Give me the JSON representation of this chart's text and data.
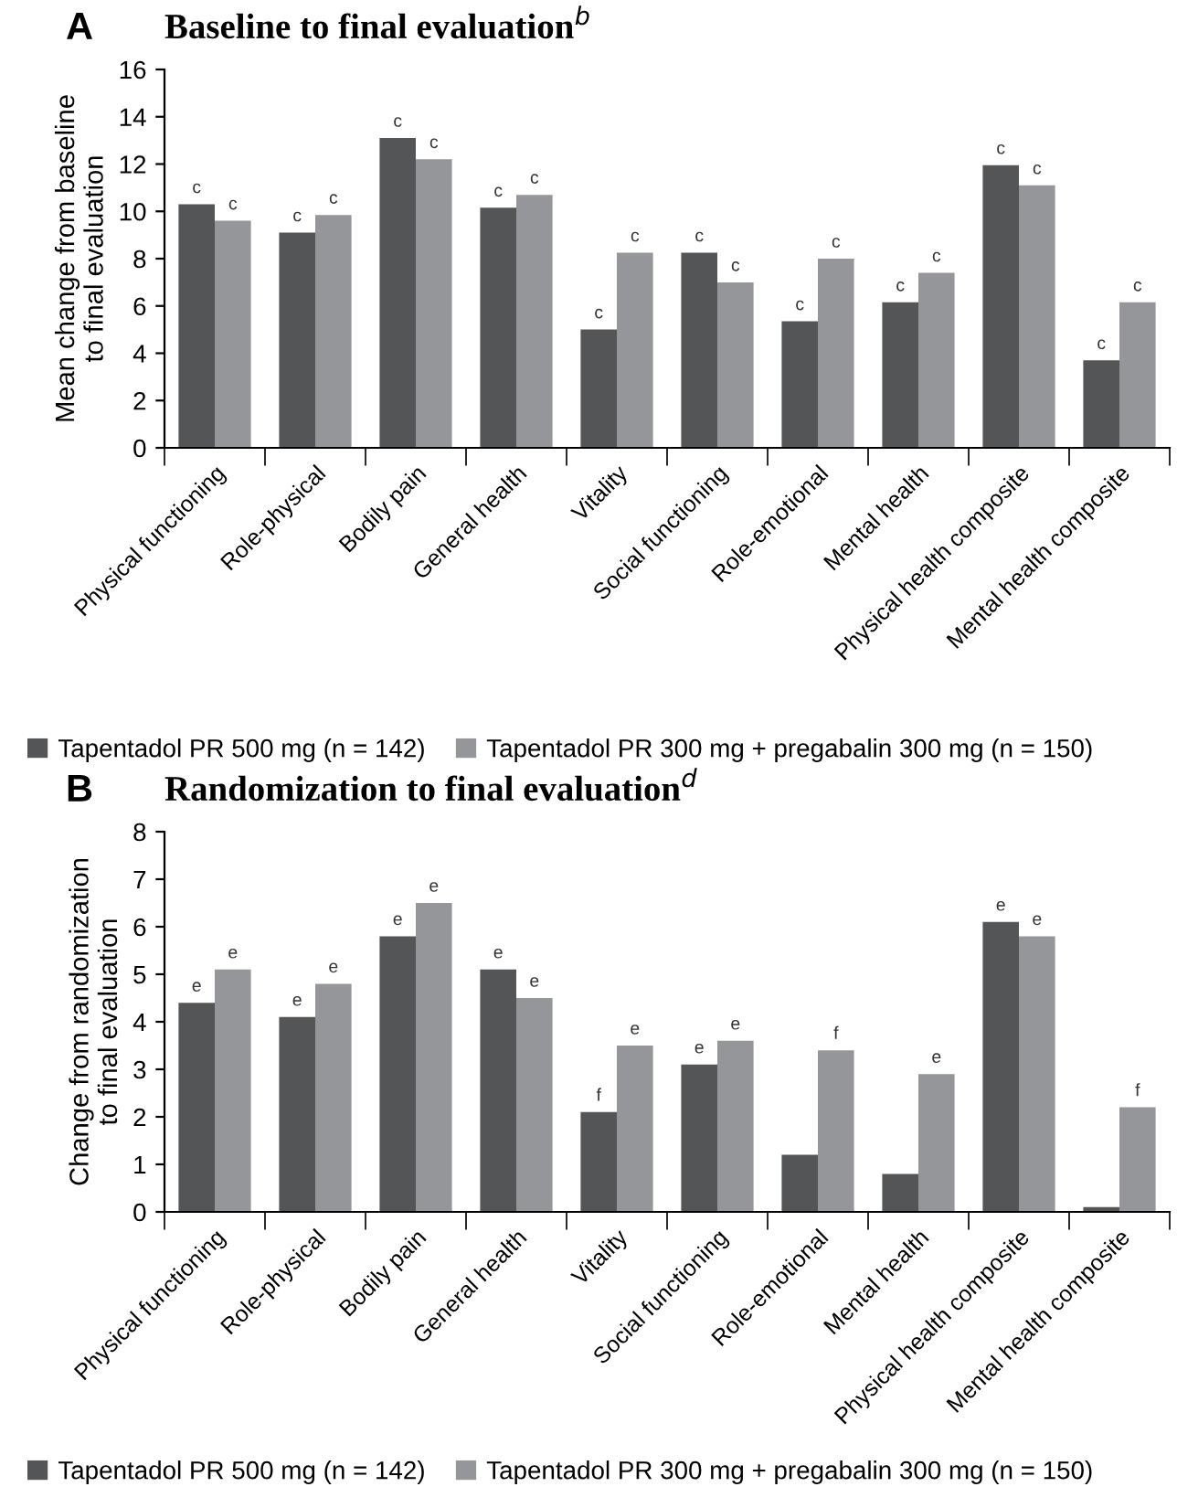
{
  "chart_data": [
    {
      "type": "bar",
      "title": "Baseline to final evaluation$^{b}$",
      "annotations": [
        "A"
      ],
      "ylabel": "Mean change from baseline\nto final evaluation",
      "categories": [
        "Physical functioning",
        "Role-physical",
        "Bodily pain",
        "General health",
        "Vitality",
        "Social functioning",
        "Role-emotional",
        "Mental health",
        "Physical health composite",
        "Mental health composite"
      ],
      "series": [
        {
          "name": "Tapentadol PR 500 mg (n = 142)",
          "color": "#545557",
          "values": [
            10.3,
            9.1,
            13.1,
            10.15,
            5.0,
            8.25,
            5.35,
            6.15,
            11.95,
            3.7
          ],
          "value_labels": [
            "c",
            "c",
            "c",
            "c",
            "c",
            "c",
            "c",
            "c",
            "c",
            "c"
          ]
        },
        {
          "name": "Tapentadol PR 300 mg + pregabalin 300 mg (n = 150)",
          "color": "#959699",
          "values": [
            9.6,
            9.85,
            12.2,
            10.7,
            8.25,
            7.0,
            8.0,
            7.4,
            11.1,
            6.15
          ],
          "value_labels": [
            "c",
            "c",
            "c",
            "c",
            "c",
            "c",
            "c",
            "c",
            "c",
            "c"
          ]
        }
      ],
      "ylim": [
        0,
        16
      ],
      "yticks": [
        0,
        2,
        4,
        6,
        8,
        10,
        12,
        14,
        16
      ],
      "grid": false,
      "legend": "bottom"
    },
    {
      "type": "bar",
      "title": "Randomization to final evaluation$^{d}$",
      "annotations": [
        "B"
      ],
      "ylabel": "Change from randomization\nto final evaluation",
      "categories": [
        "Physical functioning",
        "Role-physical",
        "Bodily pain",
        "General health",
        "Vitality",
        "Social functioning",
        "Role-emotional",
        "Mental health",
        "Physical health composite",
        "Mental health composite"
      ],
      "series": [
        {
          "name": "Tapentadol PR 500 mg (n = 142)",
          "color": "#545557",
          "values": [
            4.4,
            4.1,
            5.8,
            5.1,
            2.1,
            3.1,
            1.2,
            0.8,
            6.1,
            0.1
          ],
          "value_labels": [
            "e",
            "e",
            "e",
            "e",
            "f",
            "e",
            null,
            null,
            "e",
            null
          ]
        },
        {
          "name": "Tapentadol PR 300 mg + pregabalin 300 mg (n = 150)",
          "color": "#959699",
          "values": [
            5.1,
            4.8,
            6.5,
            4.5,
            3.5,
            3.6,
            3.4,
            2.9,
            5.8,
            2.2
          ],
          "value_labels": [
            "e",
            "e",
            "e",
            "e",
            "e",
            "e",
            "f",
            "e",
            "e",
            "f"
          ]
        }
      ],
      "ylim": [
        0,
        8
      ],
      "yticks": [
        0,
        1,
        2,
        3,
        4,
        5,
        6,
        7,
        8
      ],
      "grid": false,
      "legend": "bottom"
    }
  ]
}
